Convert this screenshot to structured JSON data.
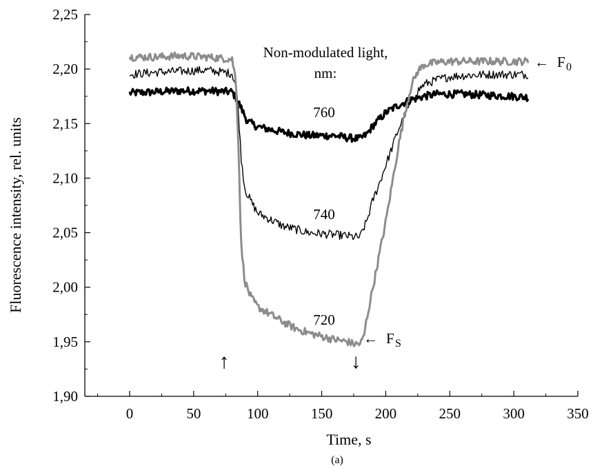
{
  "chart_data": {
    "type": "line",
    "xlabel": "Time, s",
    "ylabel": "Fluorescence intensity, rel. units",
    "caption": "(a)",
    "xlim": [
      -35,
      350
    ],
    "ylim": [
      1.9,
      2.25
    ],
    "x_ticks": [
      "0",
      "50",
      "100",
      "150",
      "200",
      "250",
      "300",
      "350"
    ],
    "y_ticks": [
      "1,90",
      "1,95",
      "2,00",
      "2,05",
      "2,10",
      "2,15",
      "2,20",
      "2,25"
    ],
    "x_tick_values": [
      0,
      50,
      100,
      150,
      200,
      250,
      300,
      350
    ],
    "y_tick_values": [
      1.9,
      1.95,
      2.0,
      2.05,
      2.1,
      2.15,
      2.2,
      2.25
    ],
    "series": [
      {
        "name": "760",
        "color": "#000000",
        "x": [
          0,
          20,
          40,
          60,
          80,
          84,
          88,
          92,
          100,
          120,
          140,
          160,
          170,
          180,
          185,
          190,
          200,
          210,
          220,
          230,
          240,
          260,
          280,
          300,
          312
        ],
        "y": [
          2.178,
          2.179,
          2.18,
          2.18,
          2.179,
          2.172,
          2.162,
          2.152,
          2.147,
          2.142,
          2.139,
          2.139,
          2.137,
          2.136,
          2.14,
          2.148,
          2.16,
          2.167,
          2.172,
          2.175,
          2.177,
          2.177,
          2.176,
          2.175,
          2.174
        ]
      },
      {
        "name": "740",
        "color": "#000000",
        "x": [
          0,
          20,
          40,
          60,
          80,
          83,
          85,
          87,
          90,
          95,
          100,
          110,
          120,
          130,
          140,
          150,
          160,
          170,
          175,
          180,
          182,
          185,
          190,
          195,
          200,
          205,
          210,
          215,
          220,
          225,
          230,
          240,
          250,
          260,
          280,
          300,
          312
        ],
        "y": [
          2.195,
          2.197,
          2.198,
          2.199,
          2.196,
          2.185,
          2.16,
          2.12,
          2.09,
          2.078,
          2.068,
          2.062,
          2.056,
          2.053,
          2.05,
          2.049,
          2.048,
          2.047,
          2.046,
          2.046,
          2.052,
          2.06,
          2.08,
          2.095,
          2.112,
          2.128,
          2.145,
          2.158,
          2.17,
          2.18,
          2.186,
          2.19,
          2.193,
          2.194,
          2.195,
          2.195,
          2.195
        ]
      },
      {
        "name": "720",
        "color": "#8c8c8c",
        "x": [
          0,
          20,
          40,
          60,
          80,
          83,
          85,
          87,
          90,
          95,
          100,
          110,
          120,
          130,
          140,
          150,
          160,
          170,
          175,
          180,
          183,
          185,
          190,
          195,
          200,
          205,
          210,
          215,
          220,
          225,
          230,
          240,
          250,
          260,
          280,
          300,
          312
        ],
        "y": [
          2.211,
          2.211,
          2.212,
          2.211,
          2.209,
          2.19,
          2.13,
          2.04,
          2.005,
          1.99,
          1.982,
          1.975,
          1.968,
          1.962,
          1.958,
          1.955,
          1.952,
          1.95,
          1.948,
          1.948,
          1.955,
          1.97,
          2.0,
          2.03,
          2.06,
          2.095,
          2.13,
          2.16,
          2.185,
          2.198,
          2.204,
          2.206,
          2.207,
          2.207,
          2.207,
          2.207,
          2.207
        ]
      }
    ],
    "annotations": {
      "legend_title_line1": "Non-modulated light,",
      "legend_title_line2": "nm:",
      "f0_arrow": "←",
      "f0_label": "F",
      "f0_sub": "0",
      "fs_arrow": "←",
      "fs_label": "F",
      "fs_sub": "S",
      "up_arrow": "↑",
      "down_arrow": "↓"
    }
  }
}
